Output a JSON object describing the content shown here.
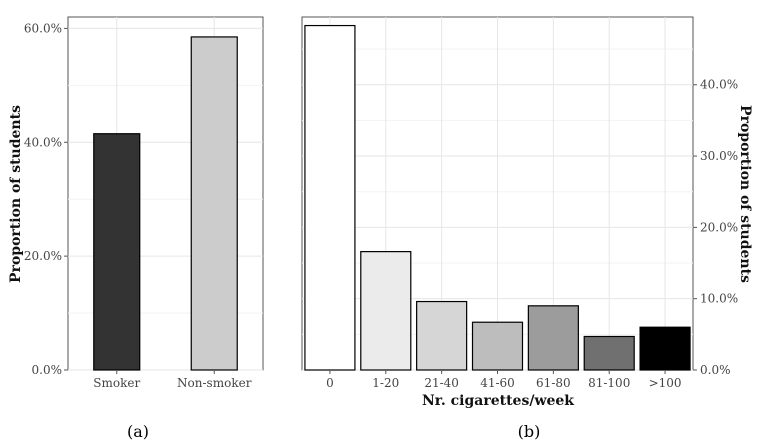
{
  "chart_data": [
    {
      "panel": "(a)",
      "type": "bar",
      "categories": [
        "Smoker",
        "Non-smoker"
      ],
      "values": [
        41.5,
        58.5
      ],
      "colors": [
        "#333333",
        "#cccccc"
      ],
      "ylabel": "Proportion of students",
      "xlabel": "",
      "ylim": [
        0,
        62
      ],
      "yticks": [
        0,
        20,
        40,
        60
      ],
      "ytick_labels": [
        "0.0%",
        "20.0%",
        "40.0%",
        "60.0%"
      ],
      "yaxis_position": "left",
      "grid": true
    },
    {
      "panel": "(b)",
      "type": "bar",
      "categories": [
        "0",
        "1-20",
        "21-40",
        "41-60",
        "61-80",
        "81-100",
        ">100"
      ],
      "values": [
        48.3,
        16.6,
        9.6,
        6.7,
        9.0,
        4.7,
        6.0
      ],
      "colors": [
        "#ffffff",
        "#ebebeb",
        "#d6d6d6",
        "#bdbdbd",
        "#9c9c9c",
        "#707070",
        "#000000"
      ],
      "ylabel": "Proportion of students",
      "xlabel": "Nr. cigarettes/week",
      "ylim": [
        0,
        49.5
      ],
      "yticks": [
        0,
        10,
        20,
        30,
        40
      ],
      "ytick_labels": [
        "0.0%",
        "10.0%",
        "20.0%",
        "30.0%",
        "40.0%"
      ],
      "yaxis_position": "right",
      "grid": true
    }
  ]
}
